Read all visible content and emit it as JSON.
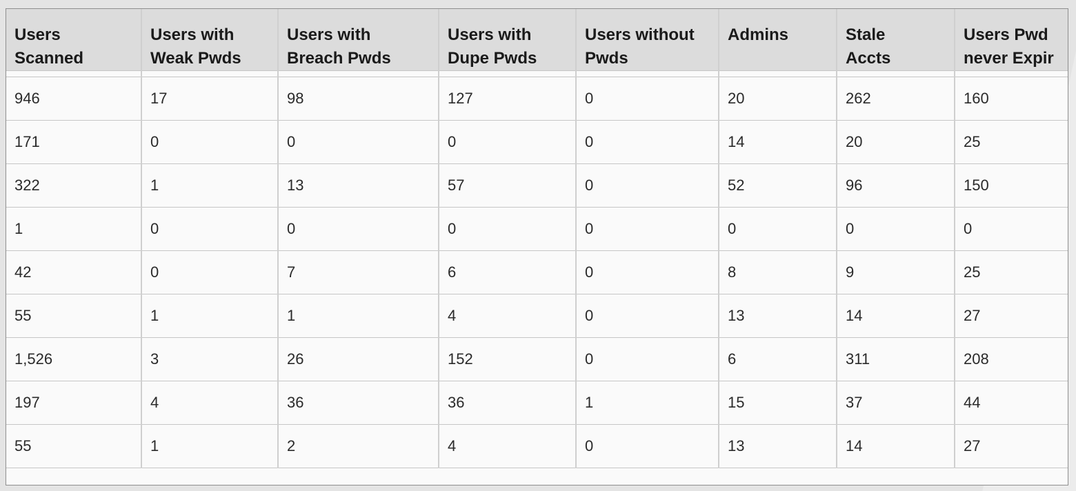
{
  "table": {
    "columns": [
      {
        "line1": "Users",
        "line2": "Scanned"
      },
      {
        "line1": "Users with",
        "line2": "Weak Pwds"
      },
      {
        "line1": "Users with",
        "line2": "Breach Pwds"
      },
      {
        "line1": "Users with",
        "line2": "Dupe Pwds"
      },
      {
        "line1": "Users without",
        "line2": "Pwds"
      },
      {
        "line1": "Admins",
        "line2": ""
      },
      {
        "line1": "Stale",
        "line2": "Accts"
      },
      {
        "line1": "Users Pwd",
        "line2": "never Expir"
      }
    ],
    "rows": [
      [
        "946",
        "17",
        "98",
        "127",
        "0",
        "20",
        "262",
        "160"
      ],
      [
        "171",
        "0",
        "0",
        "0",
        "0",
        "14",
        "20",
        "25"
      ],
      [
        "322",
        "1",
        "13",
        "57",
        "0",
        "52",
        "96",
        "150"
      ],
      [
        "1",
        "0",
        "0",
        "0",
        "0",
        "0",
        "0",
        "0"
      ],
      [
        "42",
        "0",
        "7",
        "6",
        "0",
        "8",
        "9",
        "25"
      ],
      [
        "55",
        "1",
        "1",
        "4",
        "0",
        "13",
        "14",
        "27"
      ],
      [
        "1,526",
        "3",
        "26",
        "152",
        "0",
        "6",
        "311",
        "208"
      ],
      [
        "197",
        "4",
        "36",
        "36",
        "1",
        "15",
        "37",
        "44"
      ],
      [
        "55",
        "1",
        "2",
        "4",
        "0",
        "13",
        "14",
        "27"
      ]
    ]
  }
}
